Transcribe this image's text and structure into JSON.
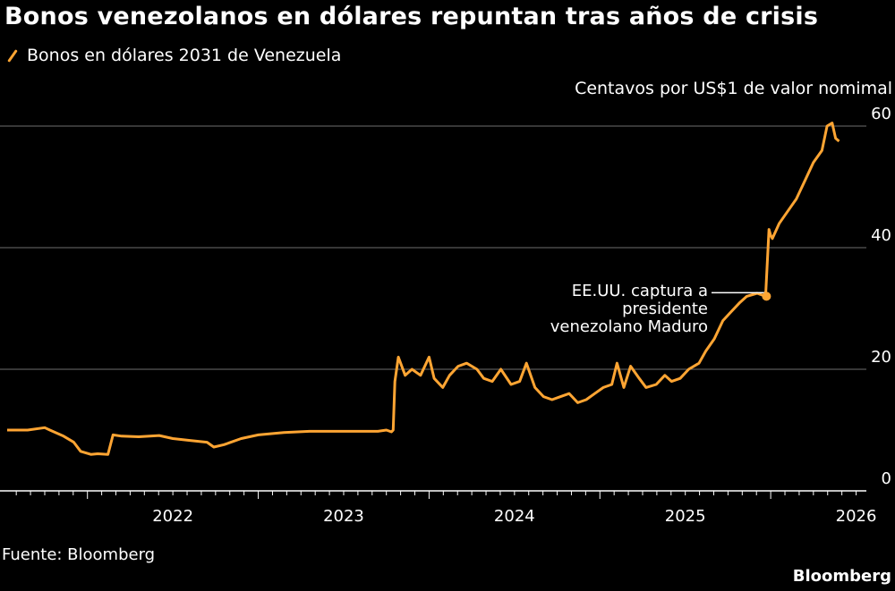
{
  "title": "Bonos venezolanos en dólares repuntan tras años de crisis",
  "legend": {
    "label": "Bonos en dólares 2031 de Venezuela"
  },
  "unit_label": "Centavos por US$1 de valor nomimal",
  "source": "Fuente: Bloomberg",
  "brand": "Bloomberg",
  "colors": {
    "line": "#ffa533",
    "background": "#000000",
    "grid": "#6e6e6e"
  },
  "chart_data": {
    "type": "line",
    "title": "Bonos venezolanos en dólares repuntan tras años de crisis",
    "ylabel": "Centavos por US$1 de valor nomimal",
    "xlim": [
      2021.53,
      2026.56
    ],
    "ylim": [
      0,
      60
    ],
    "y_ticks": [
      0,
      20,
      40,
      60
    ],
    "x_ticks": [
      2022,
      2023,
      2024,
      2025,
      2026
    ],
    "x_tick_labels": [
      "2022",
      "2023",
      "2024",
      "2025",
      "2026"
    ],
    "grid": true,
    "legend_position": "top-left",
    "series": [
      {
        "name": "Bonos en dólares 2031 de Venezuela",
        "x": [
          2021.53,
          2021.65,
          2021.75,
          2021.78,
          2021.86,
          2021.92,
          2021.96,
          2022.02,
          2022.06,
          2022.12,
          2022.15,
          2022.2,
          2022.3,
          2022.42,
          2022.5,
          2022.6,
          2022.7,
          2022.74,
          2022.8,
          2022.9,
          2023.0,
          2023.15,
          2023.3,
          2023.5,
          2023.65,
          2023.7,
          2023.75,
          2023.78,
          2023.79,
          2023.8,
          2023.82,
          2023.86,
          2023.9,
          2023.95,
          2024.0,
          2024.03,
          2024.08,
          2024.12,
          2024.17,
          2024.22,
          2024.28,
          2024.32,
          2024.37,
          2024.42,
          2024.48,
          2024.53,
          2024.57,
          2024.62,
          2024.67,
          2024.72,
          2024.77,
          2024.82,
          2024.87,
          2024.92,
          2024.97,
          2025.02,
          2025.07,
          2025.1,
          2025.14,
          2025.18,
          2025.23,
          2025.27,
          2025.33,
          2025.38,
          2025.42,
          2025.47,
          2025.52,
          2025.58,
          2025.62,
          2025.67,
          2025.72,
          2025.77,
          2025.82,
          2025.86,
          2025.92,
          2025.97,
          2025.99,
          2026.0,
          2026.01,
          2026.05,
          2026.1,
          2026.15,
          2026.2,
          2026.25,
          2026.3,
          2026.33,
          2026.36,
          2026.38,
          2026.4
        ],
        "values": [
          10.0,
          10.0,
          10.4,
          10.0,
          9.0,
          8.0,
          6.5,
          6.0,
          6.1,
          6.0,
          9.2,
          9.0,
          8.9,
          9.1,
          8.6,
          8.3,
          8.0,
          7.2,
          7.6,
          8.6,
          9.2,
          9.6,
          9.8,
          9.8,
          9.8,
          9.8,
          10.0,
          9.7,
          10.0,
          18.0,
          22.0,
          19.0,
          20.0,
          19.0,
          22.0,
          18.5,
          17.0,
          19.0,
          20.5,
          21.0,
          20.0,
          18.5,
          18.0,
          20.0,
          17.5,
          18.0,
          21.0,
          17.0,
          15.5,
          15.0,
          15.5,
          16.0,
          14.5,
          15.0,
          16.0,
          17.0,
          17.5,
          21.0,
          17.0,
          20.5,
          18.5,
          17.0,
          17.5,
          19.0,
          18.0,
          18.5,
          20.0,
          21.0,
          23.0,
          25.0,
          28.0,
          29.5,
          31.0,
          32.0,
          32.5,
          32.0,
          43.0,
          42.0,
          41.5,
          44.0,
          46.0,
          48.0,
          51.0,
          54.0,
          56.0,
          60.0,
          60.5,
          58.0,
          57.5
        ]
      }
    ],
    "annotations": [
      {
        "lines": [
          "EE.UU. captura a",
          "presidente",
          "venezolano Maduro"
        ],
        "x": 2025.97,
        "y": 32.0
      }
    ]
  }
}
